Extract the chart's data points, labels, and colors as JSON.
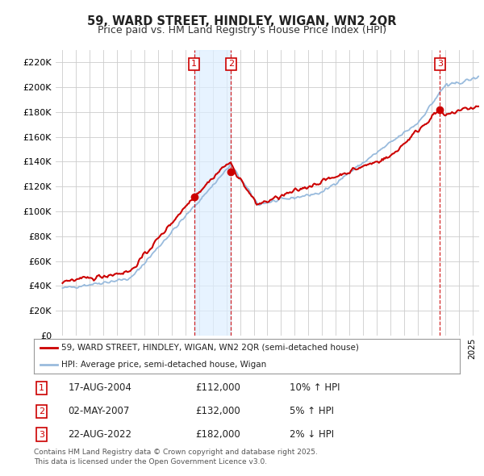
{
  "title": "59, WARD STREET, HINDLEY, WIGAN, WN2 2QR",
  "subtitle": "Price paid vs. HM Land Registry's House Price Index (HPI)",
  "ylim": [
    0,
    230000
  ],
  "yticks": [
    0,
    20000,
    40000,
    60000,
    80000,
    100000,
    120000,
    140000,
    160000,
    180000,
    200000,
    220000
  ],
  "xlim_start": 1994.5,
  "xlim_end": 2025.5,
  "background_color": "#ffffff",
  "plot_bg_color": "#ffffff",
  "grid_color": "#cccccc",
  "sale_color": "#cc0000",
  "hpi_color": "#99bbdd",
  "transactions": [
    {
      "num": 1,
      "date_label": "17-AUG-2004",
      "date_x": 2004.63,
      "price": 112000,
      "pct": "10%",
      "direction": "↑"
    },
    {
      "num": 2,
      "date_label": "02-MAY-2007",
      "date_x": 2007.33,
      "price": 132000,
      "pct": "5%",
      "direction": "↑"
    },
    {
      "num": 3,
      "date_label": "22-AUG-2022",
      "date_x": 2022.63,
      "price": 182000,
      "pct": "2%",
      "direction": "↓"
    }
  ],
  "legend_sale_label": "59, WARD STREET, HINDLEY, WIGAN, WN2 2QR (semi-detached house)",
  "legend_hpi_label": "HPI: Average price, semi-detached house, Wigan",
  "footnote": "Contains HM Land Registry data © Crown copyright and database right 2025.\nThis data is licensed under the Open Government Licence v3.0.",
  "shade_color": "#ddeeff",
  "marker_box_color": "#cc0000",
  "marker_box_facecolor": "#ffffff"
}
